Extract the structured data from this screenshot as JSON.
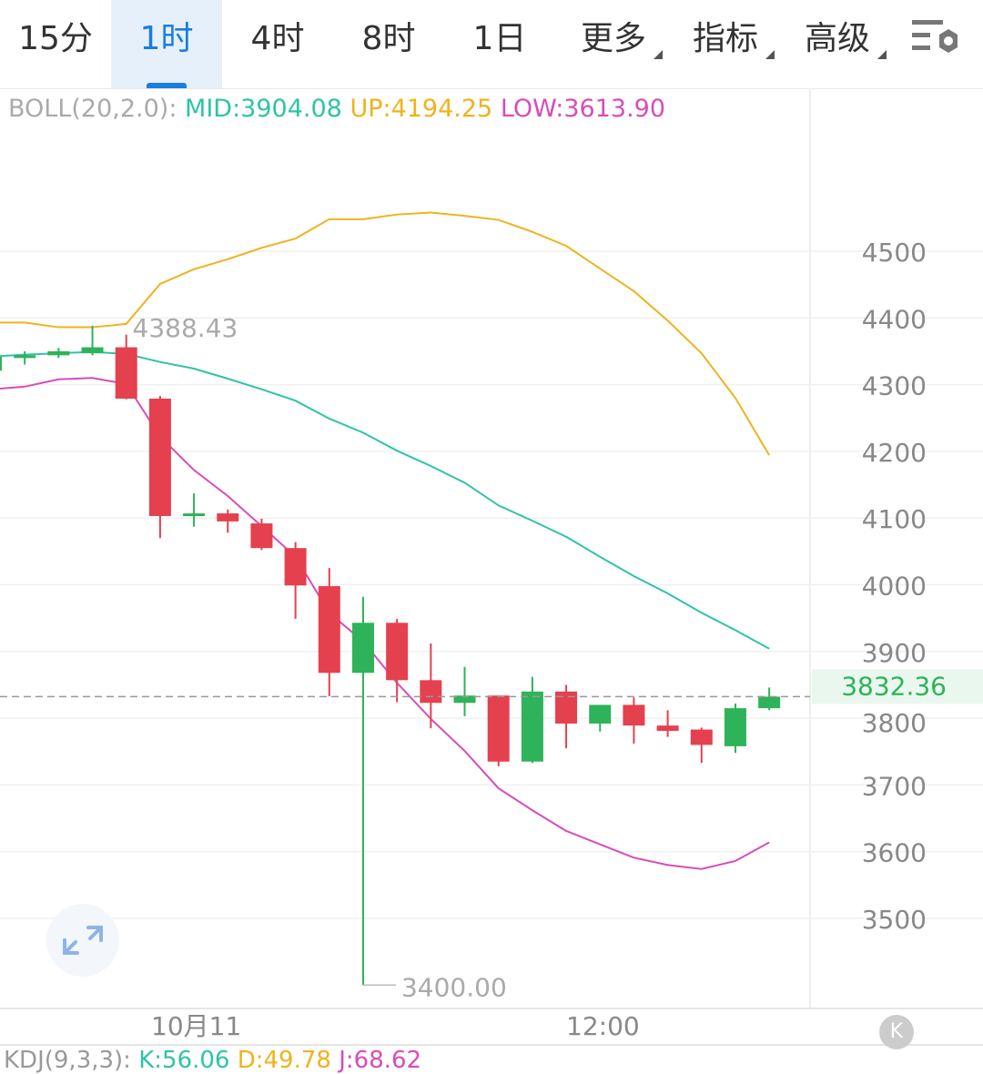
{
  "tabs": [
    {
      "label": "15分"
    },
    {
      "label": "1时",
      "active": true
    },
    {
      "label": "4时"
    },
    {
      "label": "8时"
    },
    {
      "label": "1日"
    },
    {
      "label": "更多",
      "dropdown": true
    },
    {
      "label": "指标",
      "dropdown": true
    },
    {
      "label": "高级",
      "dropdown": true
    }
  ],
  "settings_icon": "chart-settings-icon",
  "legend": {
    "name": "BOLL(20,2.0):",
    "mid": "MID:3904.08",
    "up": "UP:4194.25",
    "low": "LOW:3613.90"
  },
  "colors": {
    "up": "#2eb35a",
    "down": "#e5404e",
    "mid": "#2ec4a6",
    "upper": "#efb31d",
    "lower": "#d94cb8",
    "accent": "#1a7de0"
  },
  "kdj": {
    "name": "KDJ(9,3,3):",
    "k": "K:56.06",
    "d": "D:49.78",
    "j": "J:68.62"
  },
  "chart_data": {
    "type": "candlestick",
    "ylim": [
      3400,
      4600
    ],
    "y_ticks": [
      "3500",
      "3600",
      "3700",
      "3800",
      "3900",
      "4000",
      "4100",
      "4200",
      "4300",
      "4400",
      "4500"
    ],
    "x_ticks": [
      {
        "label": "10月11",
        "index": 5
      },
      {
        "label": "12:00",
        "index": 17
      }
    ],
    "last_price": "3832.36",
    "high_label": "4388.43",
    "low_label": "3400.00",
    "candles": [
      [
        4321,
        4342,
        4345,
        4318
      ],
      [
        4340,
        4344,
        4350,
        4330
      ],
      [
        4344,
        4350,
        4355,
        4340
      ],
      [
        4347,
        4356,
        4388.43,
        4344
      ],
      [
        4356,
        4279,
        4375,
        4278
      ],
      [
        4279,
        4103,
        4283,
        4070
      ],
      [
        4103,
        4107,
        4137,
        4087
      ],
      [
        4107,
        4095,
        4113,
        4078
      ],
      [
        4092,
        4055,
        4099,
        4052
      ],
      [
        4055,
        3999,
        4064,
        3949
      ],
      [
        3998,
        3868,
        4025,
        3833
      ],
      [
        3868,
        3943,
        3982,
        3400
      ],
      [
        3943,
        3857,
        3949,
        3824
      ],
      [
        3857,
        3823,
        3912,
        3785
      ],
      [
        3823,
        3834,
        3877,
        3803
      ],
      [
        3834,
        3735,
        3834,
        3728
      ],
      [
        3735,
        3840,
        3862,
        3733
      ],
      [
        3840,
        3792,
        3850,
        3755
      ],
      [
        3792,
        3820,
        3820,
        3780
      ],
      [
        3820,
        3789,
        3831,
        3762
      ],
      [
        3789,
        3781,
        3812,
        3772
      ],
      [
        3783,
        3760,
        3786,
        3733
      ],
      [
        3758,
        3815,
        3822,
        3748
      ],
      [
        3815,
        3832.36,
        3846,
        3812
      ]
    ],
    "boll_up": [
      4393,
      4393,
      4386,
      4386,
      4391,
      4451,
      4473,
      4488,
      4505,
      4519,
      4548,
      4548,
      4555,
      4558,
      4553,
      4547,
      4529,
      4508,
      4474,
      4440,
      4396,
      4347,
      4280,
      4194.25
    ],
    "boll_mid": [
      4342,
      4345,
      4347,
      4349,
      4346,
      4334,
      4324,
      4309,
      4293,
      4276,
      4249,
      4228,
      4201,
      4178,
      4153,
      4119,
      4096,
      4072,
      4042,
      4013,
      3987,
      3958,
      3932,
      3904.08
    ],
    "boll_low": [
      4293,
      4297,
      4308,
      4310,
      4301,
      4222,
      4172,
      4133,
      4088,
      4042,
      3958,
      3915,
      3853,
      3799,
      3751,
      3695,
      3662,
      3631,
      3611,
      3591,
      3580,
      3574,
      3586,
      3613.9
    ]
  }
}
